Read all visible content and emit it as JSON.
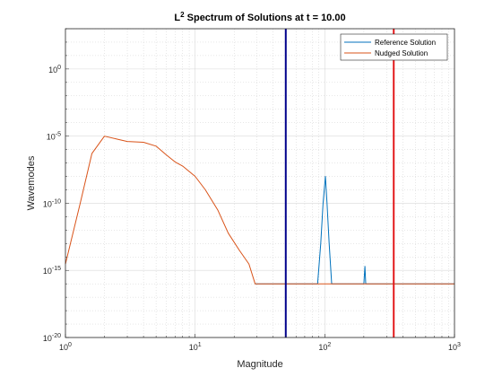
{
  "chart_data": {
    "type": "line",
    "title_main": "L",
    "title_sup": "2",
    "title_rest": " Spectrum of Solutions at t = 10.00",
    "xlabel": "Magnitude",
    "ylabel": "Wavemodes",
    "xscale": "log",
    "yscale": "log",
    "xlim": [
      1,
      1000
    ],
    "ylim": [
      1e-20,
      1000.0
    ],
    "grid": true,
    "minor_grid": true,
    "legend_location": "top-right",
    "x_ticks": [
      {
        "value": 1,
        "base": "10",
        "exp": "0"
      },
      {
        "value": 10,
        "base": "10",
        "exp": "1"
      },
      {
        "value": 100,
        "base": "10",
        "exp": "2"
      },
      {
        "value": 1000,
        "base": "10",
        "exp": "3"
      }
    ],
    "y_ticks": [
      {
        "value": 1e-20,
        "base": "10",
        "exp": "-20"
      },
      {
        "value": 1e-15,
        "base": "10",
        "exp": "-15"
      },
      {
        "value": 1e-10,
        "base": "10",
        "exp": "-10"
      },
      {
        "value": 1e-05,
        "base": "10",
        "exp": "-5"
      },
      {
        "value": 1,
        "base": "10",
        "exp": "0"
      }
    ],
    "series": [
      {
        "name": "Reference Solution",
        "color": "#0072bd",
        "points": [
          [
            29,
            1e-16
          ],
          [
            88,
            1e-16
          ],
          [
            93,
            1e-13
          ],
          [
            97,
            1e-10
          ],
          [
            101,
            1e-08
          ],
          [
            104,
            1e-10
          ],
          [
            108,
            1e-13
          ],
          [
            113,
            1e-16
          ],
          [
            200,
            1e-16
          ],
          [
            204,
            2e-15
          ],
          [
            207,
            1e-16
          ],
          [
            1000,
            1e-16
          ]
        ]
      },
      {
        "name": "Nudged Solution",
        "color": "#d95319",
        "points": [
          [
            1,
            3e-15
          ],
          [
            1.3,
            1e-10
          ],
          [
            1.6,
            5e-07
          ],
          [
            2,
            1e-05
          ],
          [
            2.5,
            6e-06
          ],
          [
            3,
            4e-06
          ],
          [
            4,
            3.5e-06
          ],
          [
            5,
            1.8e-06
          ],
          [
            6,
            4e-07
          ],
          [
            7,
            1.2e-07
          ],
          [
            8,
            6e-08
          ],
          [
            10,
            1e-08
          ],
          [
            12,
            1e-09
          ],
          [
            15,
            3e-11
          ],
          [
            18,
            6e-13
          ],
          [
            22,
            3e-14
          ],
          [
            26,
            3e-15
          ],
          [
            29,
            1e-16
          ],
          [
            1000,
            1e-16
          ]
        ]
      }
    ],
    "vertical_lines": [
      {
        "x": 50,
        "color": "#00008b"
      },
      {
        "x": 340,
        "color": "#e31a1c"
      }
    ]
  }
}
